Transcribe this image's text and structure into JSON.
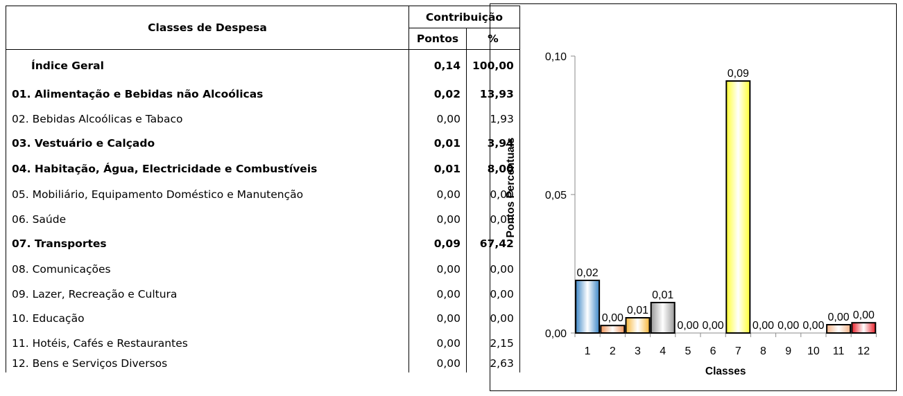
{
  "table": {
    "header_label": "Classes de Despesa",
    "header_group": "Contribuição",
    "header_points": "Pontos",
    "header_pct": "%",
    "rows": [
      {
        "label": "Índice Geral",
        "points": "0,14",
        "pct": "100,00",
        "bold": true,
        "general": true
      },
      {
        "label": "01. Alimentação e Bebidas não Alcoólicas",
        "points": "0,02",
        "pct": "13,93",
        "bold": true
      },
      {
        "label": "02. Bebidas Alcoólicas e Tabaco",
        "points": "0,00",
        "pct": "1,93",
        "bold": false
      },
      {
        "label": "03. Vestuário e Calçado",
        "points": "0,01",
        "pct": "3,94",
        "bold": true
      },
      {
        "label": "04. Habitação, Água, Electricidade e Combustíveis",
        "points": "0,01",
        "pct": "8,00",
        "bold": true
      },
      {
        "label": "05. Mobiliário, Equipamento Doméstico e Manutenção",
        "points": "0,00",
        "pct": "0,00",
        "bold": false
      },
      {
        "label": "06. Saúde",
        "points": "0,00",
        "pct": "0,00",
        "bold": false
      },
      {
        "label": "07. Transportes",
        "points": "0,09",
        "pct": "67,42",
        "bold": true
      },
      {
        "label": "08. Comunicações",
        "points": "0,00",
        "pct": "0,00",
        "bold": false
      },
      {
        "label": "09. Lazer, Recreação e Cultura",
        "points": "0,00",
        "pct": "0,00",
        "bold": false
      },
      {
        "label": "10. Educação",
        "points": "0,00",
        "pct": "0,00",
        "bold": false
      },
      {
        "label": "11. Hotéis, Cafés e Restaurantes",
        "points": "0,00",
        "pct": "2,15",
        "bold": false
      },
      {
        "label": "12. Bens e Serviços Diversos",
        "points": "0,00",
        "pct": "2,63",
        "bold": false
      }
    ]
  },
  "chart_data": {
    "type": "bar",
    "categories": [
      "1",
      "2",
      "3",
      "4",
      "5",
      "6",
      "7",
      "8",
      "9",
      "10",
      "11",
      "12"
    ],
    "values": [
      0.019,
      0.0027,
      0.0055,
      0.011,
      0,
      0,
      0.091,
      0,
      0,
      0,
      0.003,
      0.0037
    ],
    "data_labels": [
      "0,02",
      "0,00",
      "0,01",
      "0,01",
      "0,00",
      "0,00",
      "0,09",
      "0,00",
      "0,00",
      "0,00",
      "0,00",
      "0,00"
    ],
    "colors": [
      "#3d86c6",
      "#f0955a",
      "#f7b73c",
      "#9a9a9a",
      "#ffffff",
      "#ffffff",
      "#ffff33",
      "#ffffff",
      "#ffffff",
      "#ffffff",
      "#f3b287",
      "#e8202a"
    ],
    "xlabel": "Classes",
    "ylabel": "Pontos Percentuais",
    "ylim": [
      0,
      0.1
    ],
    "yticks": [
      0,
      0.05,
      0.1
    ],
    "ytick_labels": [
      "0,00",
      "0,05",
      "0,10"
    ],
    "grid": false,
    "legend": "none"
  }
}
